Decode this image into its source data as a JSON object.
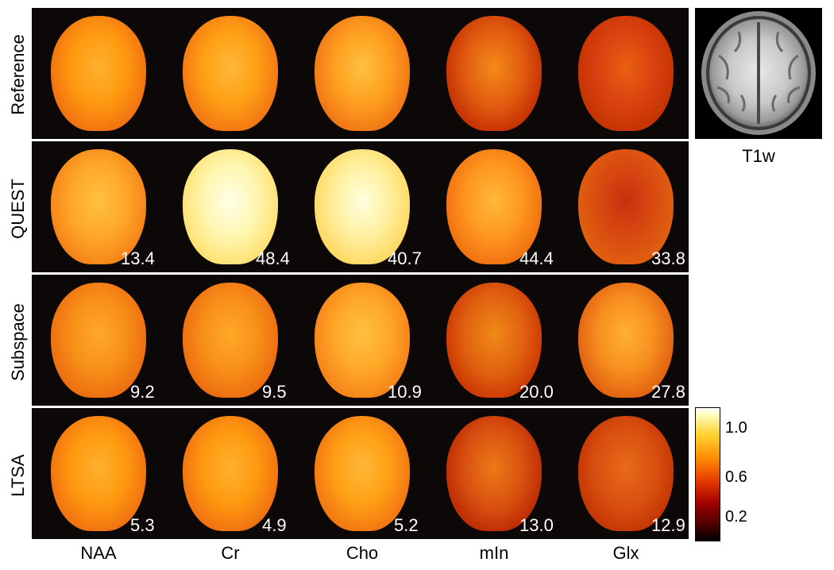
{
  "rows": [
    "Reference",
    "QUEST",
    "Subspace",
    "LTSA"
  ],
  "columns": [
    "NAA",
    "Cr",
    "Cho",
    "mIn",
    "Glx"
  ],
  "errors": {
    "QUEST": [
      "13.4",
      "48.4",
      "40.7",
      "44.4",
      "33.8"
    ],
    "Subspace": [
      "9.2",
      "9.5",
      "10.9",
      "20.0",
      "27.8"
    ],
    "LTSA": [
      "5.3",
      "4.9",
      "5.2",
      "13.0",
      "12.9"
    ]
  },
  "t1w_label": "T1w",
  "colorbar": {
    "ticks": [
      "1.0",
      "0.6",
      "0.2"
    ]
  }
}
